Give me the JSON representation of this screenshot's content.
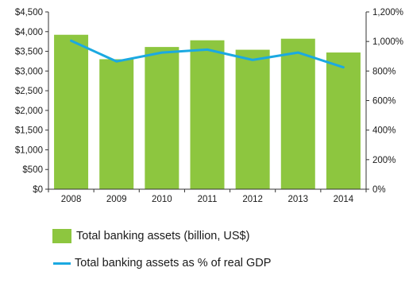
{
  "chart_data": {
    "type": "bar",
    "categories": [
      "2008",
      "2009",
      "2010",
      "2011",
      "2012",
      "2013",
      "2014"
    ],
    "series": [
      {
        "name": "Total banking assets (billion, US$)",
        "type": "bar",
        "axis": "left",
        "color": "#8dc63f",
        "values": [
          3920,
          3300,
          3610,
          3780,
          3540,
          3820,
          3470
        ]
      },
      {
        "name": "Total banking assets as % of real GDP",
        "type": "line",
        "axis": "right",
        "color": "#1ba9e1",
        "values": [
          1005,
          865,
          925,
          945,
          875,
          925,
          825
        ]
      }
    ],
    "y_left": {
      "min": 0,
      "max": 4500,
      "ticks": [
        "$0",
        "$500",
        "$1,000",
        "$1,500",
        "$2,000",
        "$2,500",
        "$3,000",
        "$3,500",
        "$4,000",
        "$4,500"
      ]
    },
    "y_right": {
      "min": 0,
      "max": 1200,
      "ticks": [
        "0%",
        "200%",
        "400%",
        "600%",
        "800%",
        "1,000%",
        "1,200%"
      ]
    },
    "legend_position": "bottom"
  }
}
